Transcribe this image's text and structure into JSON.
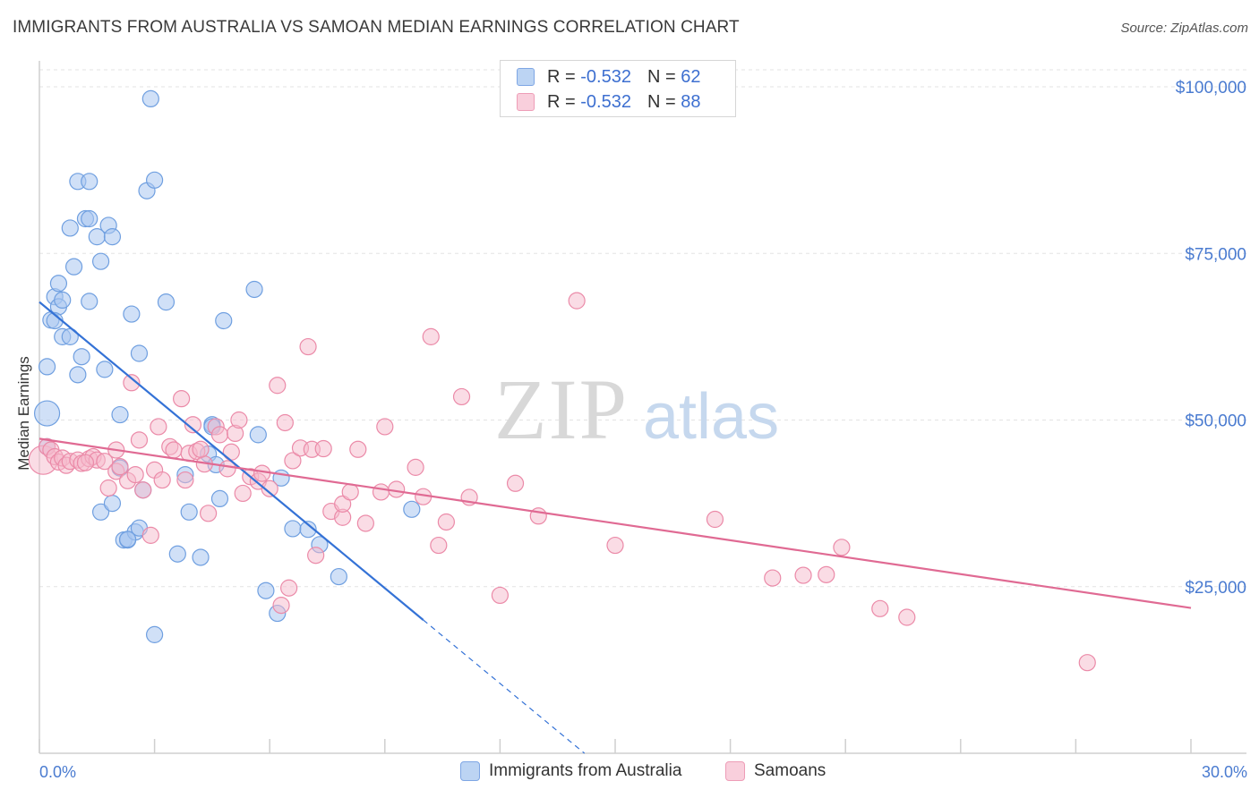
{
  "header": {
    "title": "IMMIGRANTS FROM AUSTRALIA VS SAMOAN MEDIAN EARNINGS CORRELATION CHART",
    "source": "Source: ZipAtlas.com"
  },
  "watermark": {
    "zip": "ZIP",
    "atlas": "atlas"
  },
  "legend": {
    "rows": [
      {
        "r_label": "R =",
        "r_value": "-0.532",
        "n_label": "N =",
        "n_value": "62",
        "color": "#a9c7f0"
      },
      {
        "r_label": "R =",
        "r_value": "-0.532",
        "n_label": "N =",
        "n_value": "88",
        "color": "#f6b9cb"
      }
    ]
  },
  "bottom_legend": [
    {
      "label": "Immigrants from Australia",
      "color": "#a9c7f0"
    },
    {
      "label": "Samoans",
      "color": "#f6b9cb"
    }
  ],
  "colors": {
    "blue_fill": "#a9c7f0",
    "blue_stroke": "#6f9fe0",
    "blue_line": "#3472d6",
    "pink_fill": "#f6b9cb",
    "pink_stroke": "#eb8aa8",
    "pink_line": "#e06a93",
    "grid": "#e3e3e3",
    "tick_text": "#4a7bd0"
  },
  "chart_data": {
    "type": "scatter",
    "title": "IMMIGRANTS FROM AUSTRALIA VS SAMOAN MEDIAN EARNINGS CORRELATION CHART",
    "xlabel": "",
    "ylabel": "Median Earnings",
    "xlim": [
      0,
      30
    ],
    "ylim": [
      0,
      102000
    ],
    "x_tick_labels": [
      "0.0%",
      "30.0%"
    ],
    "y_ticks": [
      25000,
      50000,
      75000,
      100000
    ],
    "y_tick_labels": [
      "$25,000",
      "$50,000",
      "$75,000",
      "$100,000"
    ],
    "grid": true,
    "legend_position": "top-center",
    "series": [
      {
        "name": "Immigrants from Australia",
        "color": "#a9c7f0",
        "points": [
          [
            0.2,
            51000
          ],
          [
            0.2,
            46000
          ],
          [
            0.2,
            58000
          ],
          [
            0.3,
            65000
          ],
          [
            0.4,
            68500
          ],
          [
            0.5,
            67000
          ],
          [
            0.5,
            70500
          ],
          [
            0.6,
            62500
          ],
          [
            0.6,
            68000
          ],
          [
            0.8,
            78800
          ],
          [
            0.8,
            62500
          ],
          [
            0.9,
            73000
          ],
          [
            1.0,
            85800
          ],
          [
            1.0,
            56800
          ],
          [
            1.1,
            59500
          ],
          [
            1.2,
            80200
          ],
          [
            1.3,
            85800
          ],
          [
            1.3,
            80200
          ],
          [
            1.3,
            67800
          ],
          [
            1.5,
            77500
          ],
          [
            1.6,
            73800
          ],
          [
            1.7,
            57600
          ],
          [
            1.8,
            79200
          ],
          [
            1.9,
            77500
          ],
          [
            2.1,
            50800
          ],
          [
            2.1,
            42800
          ],
          [
            2.2,
            32000
          ],
          [
            2.3,
            32000
          ],
          [
            2.4,
            65900
          ],
          [
            2.5,
            33200
          ],
          [
            2.6,
            60000
          ],
          [
            2.7,
            39500
          ],
          [
            2.8,
            84400
          ],
          [
            2.9,
            98200
          ],
          [
            3.0,
            86000
          ],
          [
            3.0,
            17800
          ],
          [
            3.3,
            67700
          ],
          [
            3.6,
            29900
          ],
          [
            3.8,
            41800
          ],
          [
            3.9,
            36200
          ],
          [
            4.2,
            29400
          ],
          [
            4.4,
            44900
          ],
          [
            4.5,
            49300
          ],
          [
            4.5,
            49000
          ],
          [
            4.6,
            43300
          ],
          [
            4.7,
            38200
          ],
          [
            4.8,
            64900
          ],
          [
            5.6,
            69600
          ],
          [
            5.7,
            47800
          ],
          [
            5.9,
            24400
          ],
          [
            6.2,
            21000
          ],
          [
            6.3,
            41300
          ],
          [
            6.6,
            33700
          ],
          [
            7.0,
            33600
          ],
          [
            7.3,
            31300
          ],
          [
            7.8,
            26500
          ],
          [
            9.7,
            36600
          ],
          [
            1.6,
            36200
          ],
          [
            1.9,
            37500
          ],
          [
            2.6,
            33800
          ],
          [
            2.3,
            32100
          ],
          [
            0.4,
            64900
          ]
        ],
        "trend": {
          "x0": 0.0,
          "y0": 67700,
          "x1": 10.0,
          "y1": 20000,
          "dashed_to_x": 14.2,
          "dashed_to_y": 0
        }
      },
      {
        "name": "Samoans",
        "color": "#f6b9cb",
        "points": [
          [
            0.1,
            44000
          ],
          [
            0.2,
            46000
          ],
          [
            0.3,
            45500
          ],
          [
            0.4,
            44500
          ],
          [
            0.5,
            43700
          ],
          [
            0.6,
            44300
          ],
          [
            0.7,
            43200
          ],
          [
            0.8,
            43800
          ],
          [
            1.0,
            44000
          ],
          [
            1.1,
            43500
          ],
          [
            1.3,
            44200
          ],
          [
            1.4,
            44500
          ],
          [
            1.5,
            44000
          ],
          [
            1.7,
            43800
          ],
          [
            1.8,
            39800
          ],
          [
            2.0,
            45500
          ],
          [
            2.0,
            42300
          ],
          [
            2.1,
            43000
          ],
          [
            2.3,
            40900
          ],
          [
            2.5,
            41800
          ],
          [
            2.4,
            55600
          ],
          [
            2.6,
            47000
          ],
          [
            2.7,
            39500
          ],
          [
            2.9,
            32700
          ],
          [
            3.0,
            42500
          ],
          [
            3.1,
            49000
          ],
          [
            3.2,
            41000
          ],
          [
            3.4,
            46000
          ],
          [
            3.5,
            45500
          ],
          [
            3.7,
            53200
          ],
          [
            3.8,
            41000
          ],
          [
            3.9,
            45000
          ],
          [
            4.0,
            49300
          ],
          [
            4.1,
            45300
          ],
          [
            4.3,
            43400
          ],
          [
            4.4,
            36000
          ],
          [
            4.6,
            49000
          ],
          [
            4.7,
            47800
          ],
          [
            4.9,
            42700
          ],
          [
            5.0,
            45200
          ],
          [
            5.1,
            48000
          ],
          [
            5.2,
            50000
          ],
          [
            5.3,
            39000
          ],
          [
            5.5,
            41500
          ],
          [
            5.7,
            40800
          ],
          [
            5.8,
            42000
          ],
          [
            6.0,
            39700
          ],
          [
            6.2,
            55200
          ],
          [
            6.3,
            22200
          ],
          [
            6.4,
            49600
          ],
          [
            6.6,
            43900
          ],
          [
            6.8,
            45800
          ],
          [
            7.0,
            61000
          ],
          [
            7.1,
            45600
          ],
          [
            7.2,
            29700
          ],
          [
            7.4,
            45700
          ],
          [
            7.6,
            36300
          ],
          [
            7.9,
            35400
          ],
          [
            7.9,
            37400
          ],
          [
            8.1,
            39200
          ],
          [
            8.3,
            45600
          ],
          [
            8.5,
            34500
          ],
          [
            8.9,
            39200
          ],
          [
            9.0,
            49000
          ],
          [
            9.3,
            39600
          ],
          [
            9.8,
            42900
          ],
          [
            10.0,
            38500
          ],
          [
            10.2,
            62500
          ],
          [
            10.4,
            31200
          ],
          [
            10.6,
            34700
          ],
          [
            11.0,
            53500
          ],
          [
            11.2,
            38400
          ],
          [
            12.0,
            23700
          ],
          [
            12.4,
            40500
          ],
          [
            13.0,
            35600
          ],
          [
            14.0,
            67900
          ],
          [
            15.0,
            31200
          ],
          [
            17.6,
            35100
          ],
          [
            19.1,
            26300
          ],
          [
            19.9,
            26700
          ],
          [
            20.5,
            26800
          ],
          [
            20.9,
            30900
          ],
          [
            21.9,
            21700
          ],
          [
            22.6,
            20400
          ],
          [
            27.3,
            13600
          ],
          [
            6.5,
            24800
          ],
          [
            1.2,
            43600
          ],
          [
            4.2,
            45600
          ]
        ],
        "trend": {
          "x0": 0.0,
          "y0": 47200,
          "x1": 30.0,
          "y1": 21800
        }
      }
    ]
  }
}
